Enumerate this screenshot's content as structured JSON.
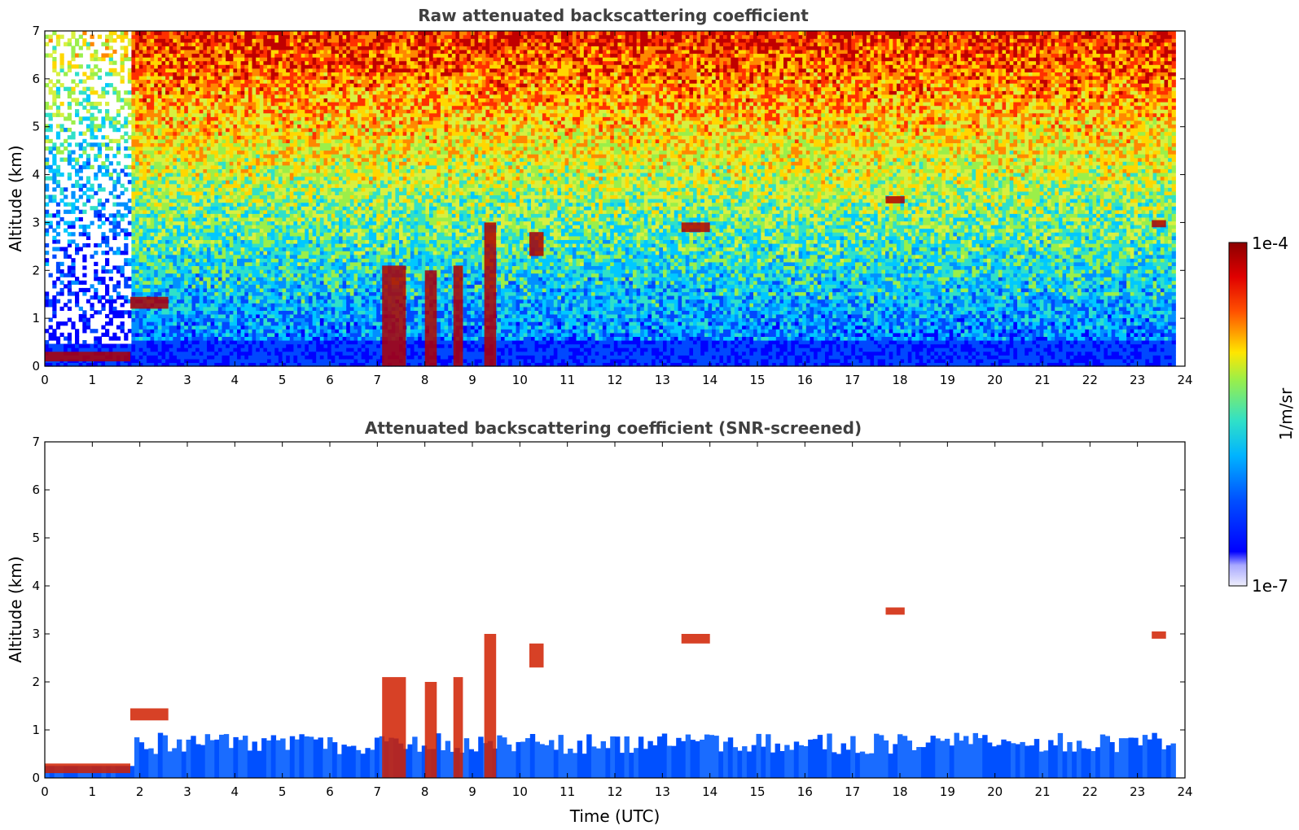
{
  "chart_data": [
    {
      "type": "heatmap",
      "title": "Raw attenuated backscattering coefficient",
      "xlabel": "",
      "ylabel": "Altitude (km)",
      "xlim": [
        0,
        24
      ],
      "ylim": [
        0,
        7
      ],
      "xticks": [
        "0",
        "1",
        "2",
        "3",
        "4",
        "5",
        "6",
        "7",
        "8",
        "9",
        "10",
        "11",
        "12",
        "13",
        "14",
        "15",
        "16",
        "17",
        "18",
        "19",
        "20",
        "21",
        "22",
        "23",
        "24"
      ],
      "yticks": [
        "0",
        "1",
        "2",
        "3",
        "4",
        "5",
        "6",
        "7"
      ],
      "data_end_time": 23.8,
      "features": [
        {
          "kind": "cloud",
          "t": [
            0.0,
            1.8
          ],
          "z": [
            0.1,
            0.3
          ]
        },
        {
          "kind": "cloud",
          "t": [
            1.8,
            2.6
          ],
          "z": [
            1.2,
            1.45
          ]
        },
        {
          "kind": "cloud",
          "t": [
            7.1,
            7.6
          ],
          "z": [
            0.0,
            2.1
          ]
        },
        {
          "kind": "cloud",
          "t": [
            8.0,
            8.25
          ],
          "z": [
            0.0,
            2.0
          ]
        },
        {
          "kind": "cloud",
          "t": [
            8.6,
            8.8
          ],
          "z": [
            0.0,
            2.1
          ]
        },
        {
          "kind": "cloud",
          "t": [
            9.25,
            9.5
          ],
          "z": [
            0.0,
            3.0
          ]
        },
        {
          "kind": "cloud",
          "t": [
            10.2,
            10.5
          ],
          "z": [
            2.3,
            2.8
          ]
        },
        {
          "kind": "cloud",
          "t": [
            13.4,
            14.0
          ],
          "z": [
            2.8,
            3.0
          ]
        },
        {
          "kind": "cloud",
          "t": [
            17.7,
            18.1
          ],
          "z": [
            3.4,
            3.55
          ]
        },
        {
          "kind": "cloud",
          "t": [
            23.3,
            23.6
          ],
          "z": [
            2.9,
            3.05
          ]
        }
      ]
    },
    {
      "type": "heatmap",
      "title": "Attenuated backscattering coefficient (SNR-screened)",
      "xlabel": "Time (UTC)",
      "ylabel": "Altitude (km)",
      "xlim": [
        0,
        24
      ],
      "ylim": [
        0,
        7
      ],
      "xticks": [
        "0",
        "1",
        "2",
        "3",
        "4",
        "5",
        "6",
        "7",
        "8",
        "9",
        "10",
        "11",
        "12",
        "13",
        "14",
        "15",
        "16",
        "17",
        "18",
        "19",
        "20",
        "21",
        "22",
        "23",
        "24"
      ],
      "yticks": [
        "0",
        "1",
        "2",
        "3",
        "4",
        "5",
        "6",
        "7"
      ],
      "data_end_time": 23.8,
      "screened_boundary_layer_top_km": 0.9
    }
  ],
  "colorbar": {
    "label": "1/m/sr",
    "max_label": "1e-4",
    "min_label": "1e-7",
    "scale": "log",
    "colormap_stops": [
      "#e6e6fa",
      "#0000ff",
      "#00bfff",
      "#40e0d0",
      "#adff2f",
      "#ffd700",
      "#ff4500",
      "#8b0000"
    ]
  }
}
